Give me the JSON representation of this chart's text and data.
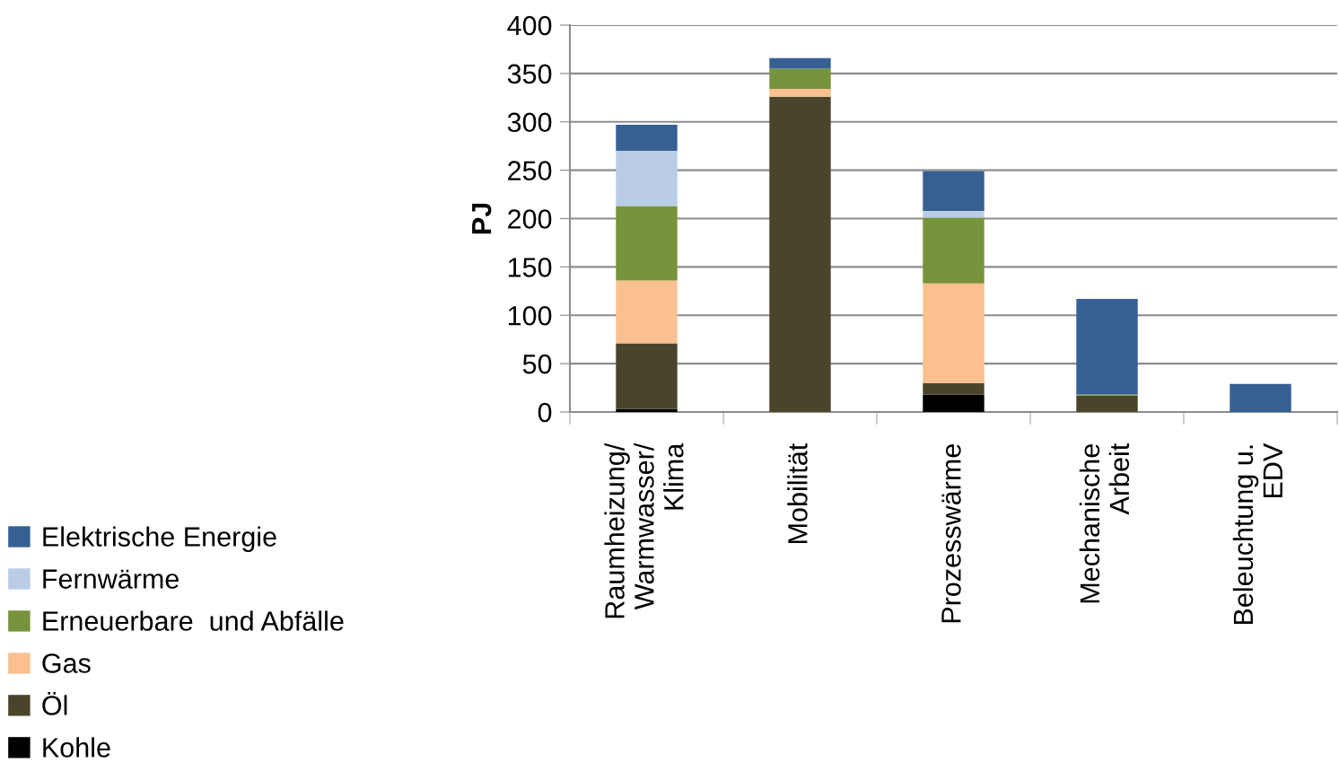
{
  "chart_data": {
    "type": "bar",
    "stacked": true,
    "ylabel": "PJ",
    "categories": [
      "Raumheizung/\nWarmwasser/\nKlima",
      "Mobilität",
      "Prozesswärme",
      "Mechanische\nArbeit",
      "Beleuchtung u.\nEDV"
    ],
    "series": [
      {
        "name": "Kohle",
        "color": "#000000",
        "values": [
          3,
          0,
          18,
          0,
          0
        ]
      },
      {
        "name": "Öl",
        "color": "#4a452a",
        "values": [
          68,
          326,
          12,
          17,
          0
        ]
      },
      {
        "name": "Gas",
        "color": "#fac090",
        "values": [
          65,
          8,
          103,
          0,
          0
        ]
      },
      {
        "name": "Erneuerbare  und Abfälle",
        "color": "#77933c",
        "values": [
          77,
          21,
          68,
          1,
          0
        ]
      },
      {
        "name": "Fernwärme",
        "color": "#b9cde5",
        "values": [
          57,
          null,
          7,
          0,
          0
        ]
      },
      {
        "name": "Elektrische Energie",
        "color": "#366092",
        "values": [
          27,
          11,
          41,
          99,
          29
        ]
      }
    ],
    "ylim": [
      0,
      400
    ],
    "yticks": [
      0,
      50,
      100,
      150,
      200,
      250,
      300,
      350,
      400
    ],
    "grid": "y",
    "legend": "left"
  }
}
